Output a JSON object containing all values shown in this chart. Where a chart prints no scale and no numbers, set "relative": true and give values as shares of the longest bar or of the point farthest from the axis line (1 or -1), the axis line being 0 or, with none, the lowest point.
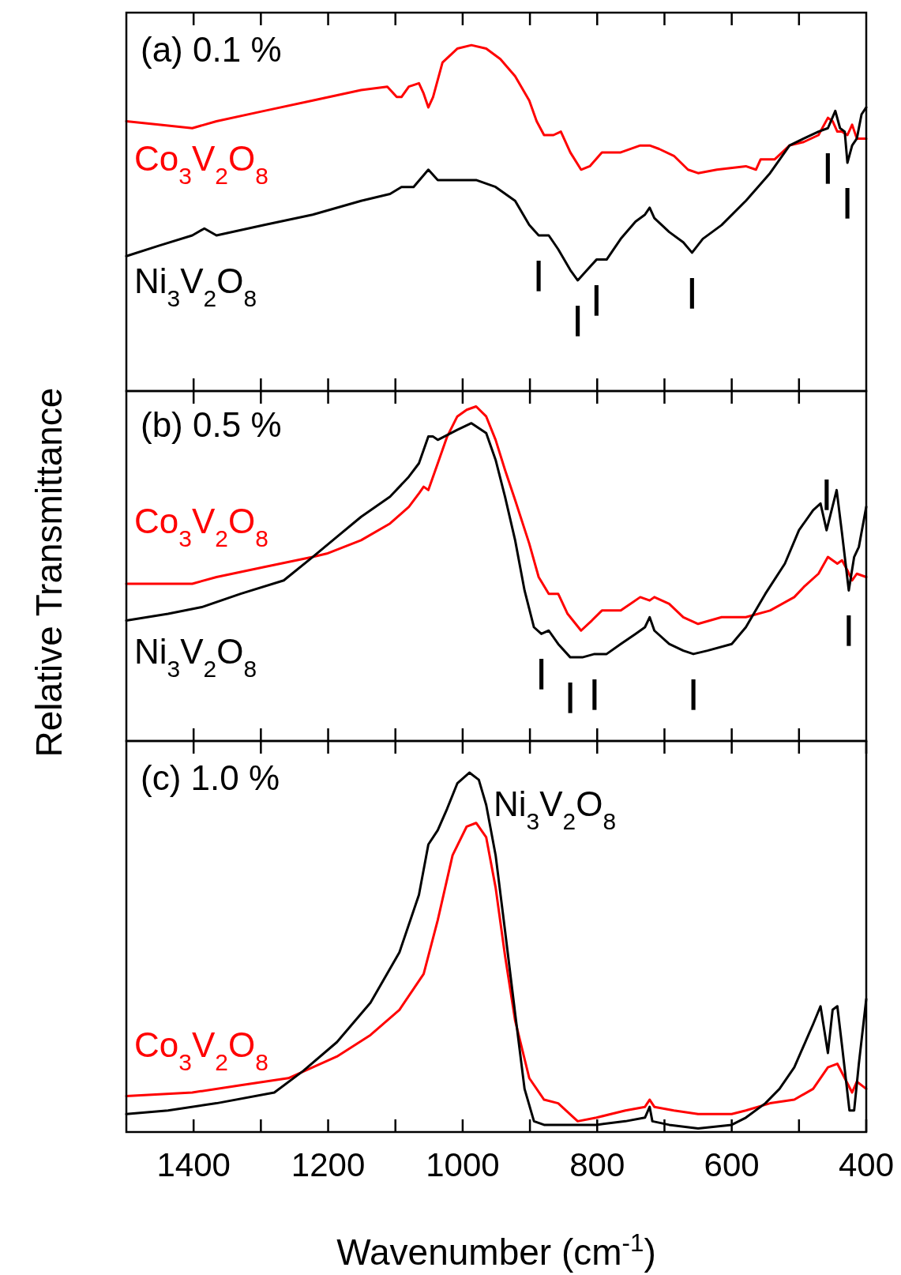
{
  "chart_data": [
    {
      "type": "line",
      "relative": true,
      "xlim": [
        1500,
        400
      ],
      "xticks": [
        {
          "value": 1400,
          "label": null
        },
        {
          "value": 1300,
          "label": null
        },
        {
          "value": 1200,
          "label": null
        },
        {
          "value": 1100,
          "label": null
        },
        {
          "value": 1000,
          "label": null
        },
        {
          "value": 900,
          "label": null
        },
        {
          "value": 800,
          "label": null
        },
        {
          "value": 700,
          "label": null
        },
        {
          "value": 600,
          "label": null
        },
        {
          "value": 500,
          "label": null
        }
      ],
      "tick_labels": false,
      "annotations": [
        "(a) 0.1 %",
        {
          "text": "|",
          "x": 887,
          "y": 0.45
        },
        {
          "text": "|",
          "x": 829,
          "y": 0.32
        },
        {
          "text": "|",
          "x": 801,
          "y": 0.38
        },
        {
          "text": "|",
          "x": 659,
          "y": 0.4
        },
        {
          "text": "|",
          "x": 457,
          "y": 0.76
        },
        {
          "text": "|",
          "x": 428,
          "y": 0.66
        }
      ],
      "series": [
        {
          "name": "Co$_{3}$V$_{2}$O$_{8}$",
          "color": "#ff0000",
          "x": [
            1500,
            1452,
            1402,
            1366,
            1295,
            1223,
            1151,
            1112,
            1098,
            1091,
            1080,
            1065,
            1058,
            1051,
            1044,
            1030,
            1008,
            987,
            965,
            944,
            922,
            901,
            890,
            879,
            865,
            854,
            840,
            824,
            811,
            793,
            765,
            736,
            722,
            708,
            686,
            665,
            650,
            622,
            579,
            564,
            557,
            536,
            514,
            493,
            471,
            457,
            450,
            443,
            436,
            428,
            421,
            414,
            400
          ],
          "values": [
            0.78,
            0.77,
            0.76,
            0.78,
            0.81,
            0.84,
            0.87,
            0.88,
            0.85,
            0.85,
            0.88,
            0.89,
            0.86,
            0.82,
            0.85,
            0.95,
            0.99,
            1.0,
            0.99,
            0.96,
            0.91,
            0.84,
            0.78,
            0.74,
            0.74,
            0.75,
            0.69,
            0.64,
            0.65,
            0.69,
            0.69,
            0.71,
            0.71,
            0.7,
            0.68,
            0.64,
            0.63,
            0.64,
            0.65,
            0.64,
            0.67,
            0.67,
            0.71,
            0.72,
            0.74,
            0.79,
            0.78,
            0.75,
            0.75,
            0.74,
            0.77,
            0.73,
            0.73
          ]
        },
        {
          "name": "Ni$_{3}$V$_{2}$O$_{8}$",
          "color": "#000000",
          "x": [
            1500,
            1452,
            1402,
            1384,
            1366,
            1295,
            1223,
            1151,
            1108,
            1091,
            1073,
            1051,
            1037,
            1008,
            980,
            951,
            922,
            901,
            887,
            872,
            858,
            840,
            829,
            815,
            801,
            786,
            765,
            743,
            729,
            722,
            715,
            693,
            672,
            659,
            643,
            615,
            579,
            543,
            514,
            493,
            471,
            457,
            446,
            439,
            432,
            428,
            421,
            414,
            407,
            400
          ],
          "values": [
            0.39,
            0.42,
            0.45,
            0.47,
            0.45,
            0.48,
            0.51,
            0.55,
            0.57,
            0.59,
            0.59,
            0.64,
            0.61,
            0.61,
            0.61,
            0.59,
            0.55,
            0.48,
            0.45,
            0.45,
            0.41,
            0.35,
            0.32,
            0.35,
            0.38,
            0.38,
            0.44,
            0.49,
            0.51,
            0.53,
            0.5,
            0.46,
            0.43,
            0.4,
            0.44,
            0.48,
            0.55,
            0.63,
            0.71,
            0.73,
            0.75,
            0.76,
            0.81,
            0.76,
            0.75,
            0.66,
            0.71,
            0.73,
            0.8,
            0.82
          ]
        }
      ]
    },
    {
      "type": "line",
      "relative": true,
      "ylabel": "Relative Transmittance",
      "xlim": [
        1500,
        400
      ],
      "xticks": [
        {
          "value": 1400,
          "label": null
        },
        {
          "value": 1300,
          "label": null
        },
        {
          "value": 1200,
          "label": null
        },
        {
          "value": 1100,
          "label": null
        },
        {
          "value": 1000,
          "label": null
        },
        {
          "value": 900,
          "label": null
        },
        {
          "value": 800,
          "label": null
        },
        {
          "value": 700,
          "label": null
        },
        {
          "value": 600,
          "label": null
        },
        {
          "value": 500,
          "label": null
        }
      ],
      "tick_labels": false,
      "annotations": [
        "(b) 0.5 %",
        {
          "text": "|",
          "x": 883,
          "y": 0.32
        },
        {
          "text": "|",
          "x": 840,
          "y": 0.25
        },
        {
          "text": "|",
          "x": 804,
          "y": 0.26
        },
        {
          "text": "|",
          "x": 657,
          "y": 0.26
        },
        {
          "text": "|",
          "x": 459,
          "y": 0.63
        },
        {
          "text": "|",
          "x": 426,
          "y": 0.45
        }
      ],
      "series": [
        {
          "name": "Co$_{3}$V$_{2}$O$_{8}$",
          "color": "#ff0000",
          "x": [
            1500,
            1452,
            1402,
            1366,
            1295,
            1223,
            1202,
            1151,
            1108,
            1080,
            1065,
            1058,
            1051,
            1037,
            1023,
            1008,
            994,
            980,
            965,
            951,
            937,
            922,
            901,
            887,
            872,
            858,
            844,
            824,
            808,
            793,
            765,
            736,
            722,
            715,
            693,
            672,
            650,
            615,
            579,
            543,
            507,
            493,
            471,
            457,
            443,
            436,
            428,
            421,
            414,
            400
          ],
          "values": [
            0.47,
            0.47,
            0.47,
            0.49,
            0.52,
            0.55,
            0.56,
            0.6,
            0.65,
            0.7,
            0.74,
            0.76,
            0.75,
            0.83,
            0.91,
            0.97,
            0.99,
            1.0,
            0.97,
            0.9,
            0.81,
            0.72,
            0.59,
            0.49,
            0.44,
            0.44,
            0.38,
            0.33,
            0.36,
            0.39,
            0.39,
            0.43,
            0.42,
            0.43,
            0.41,
            0.37,
            0.35,
            0.37,
            0.37,
            0.39,
            0.43,
            0.46,
            0.5,
            0.55,
            0.53,
            0.54,
            0.51,
            0.48,
            0.5,
            0.49
          ]
        },
        {
          "name": "Ni$_{3}$V$_{2}$O$_{8}$",
          "color": "#000000",
          "x": [
            1500,
            1438,
            1388,
            1330,
            1266,
            1223,
            1187,
            1151,
            1108,
            1080,
            1065,
            1051,
            1044,
            1037,
            1008,
            987,
            965,
            951,
            937,
            922,
            908,
            894,
            883,
            872,
            858,
            840,
            822,
            804,
            786,
            765,
            743,
            729,
            722,
            715,
            693,
            672,
            657,
            636,
            600,
            579,
            550,
            521,
            500,
            479,
            468,
            459,
            444,
            436,
            426,
            418,
            411,
            400
          ],
          "values": [
            0.36,
            0.38,
            0.4,
            0.44,
            0.48,
            0.55,
            0.61,
            0.67,
            0.73,
            0.79,
            0.83,
            0.91,
            0.91,
            0.9,
            0.93,
            0.95,
            0.92,
            0.84,
            0.73,
            0.6,
            0.45,
            0.34,
            0.32,
            0.33,
            0.29,
            0.25,
            0.25,
            0.26,
            0.26,
            0.29,
            0.32,
            0.34,
            0.37,
            0.33,
            0.29,
            0.27,
            0.26,
            0.27,
            0.29,
            0.34,
            0.44,
            0.53,
            0.63,
            0.69,
            0.71,
            0.63,
            0.75,
            0.62,
            0.45,
            0.55,
            0.58,
            0.7
          ]
        }
      ]
    },
    {
      "type": "line",
      "relative": true,
      "xlabel": "Wavenumber (cm$^{-1}$)",
      "xlim": [
        1500,
        400
      ],
      "xticks": [
        1400,
        {
          "value": 1300,
          "label": null
        },
        1200,
        {
          "value": 1100,
          "label": null
        },
        1000,
        {
          "value": 900,
          "label": null
        },
        800,
        {
          "value": 700,
          "label": null
        },
        600,
        {
          "value": 500,
          "label": null
        },
        400
      ],
      "tick_labels": "x",
      "annotations": [
        "(c) 1.0 %"
      ],
      "series": [
        {
          "name": "Co$_{3}$V$_{2}$O$_{8}$",
          "color": "#ff0000",
          "x": [
            1500,
            1402,
            1330,
            1259,
            1187,
            1137,
            1094,
            1058,
            1037,
            1015,
            994,
            980,
            965,
            951,
            937,
            922,
            901,
            879,
            858,
            829,
            801,
            758,
            729,
            722,
            715,
            686,
            650,
            600,
            579,
            543,
            507,
            479,
            457,
            443,
            432,
            421,
            414,
            400
          ],
          "values": [
            0.1,
            0.11,
            0.13,
            0.15,
            0.21,
            0.27,
            0.34,
            0.44,
            0.59,
            0.77,
            0.85,
            0.86,
            0.82,
            0.68,
            0.49,
            0.31,
            0.15,
            0.09,
            0.08,
            0.03,
            0.04,
            0.06,
            0.07,
            0.09,
            0.07,
            0.06,
            0.05,
            0.05,
            0.06,
            0.08,
            0.09,
            0.12,
            0.18,
            0.19,
            0.15,
            0.11,
            0.14,
            0.12
          ]
        },
        {
          "name": "Ni$_{3}$V$_{2}$O$_{8}$",
          "color": "#000000",
          "x": [
            1500,
            1438,
            1366,
            1280,
            1237,
            1187,
            1137,
            1094,
            1065,
            1051,
            1037,
            1023,
            1008,
            990,
            976,
            965,
            951,
            937,
            922,
            908,
            894,
            879,
            844,
            801,
            758,
            729,
            722,
            718,
            693,
            650,
            600,
            579,
            550,
            529,
            507,
            486,
            479,
            468,
            457,
            450,
            443,
            436,
            425,
            418,
            411,
            400
          ],
          "values": [
            0.05,
            0.06,
            0.08,
            0.11,
            0.17,
            0.25,
            0.36,
            0.5,
            0.66,
            0.8,
            0.84,
            0.9,
            0.97,
            1.0,
            0.98,
            0.91,
            0.77,
            0.56,
            0.33,
            0.12,
            0.03,
            0.02,
            0.02,
            0.02,
            0.03,
            0.04,
            0.07,
            0.03,
            0.02,
            0.01,
            0.02,
            0.04,
            0.08,
            0.12,
            0.18,
            0.27,
            0.3,
            0.35,
            0.22,
            0.34,
            0.35,
            0.24,
            0.06,
            0.06,
            0.19,
            0.37
          ]
        }
      ]
    }
  ]
}
